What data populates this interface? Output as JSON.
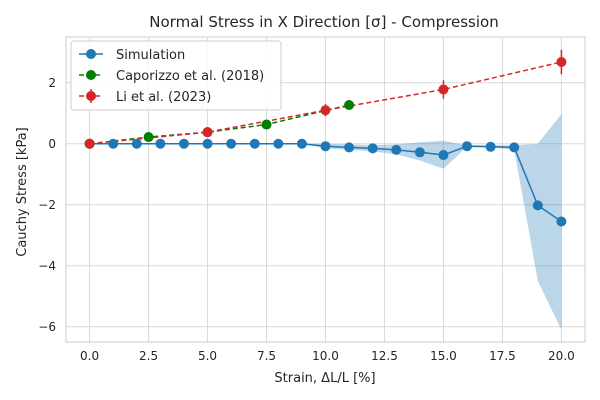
{
  "chart_data": {
    "type": "line",
    "title": "Normal Stress in X Direction [σ] - Compression",
    "xlabel": "Strain, ΔL/L [%]",
    "ylabel": "Cauchy Stress [kPa]",
    "xlim": [
      -1.0,
      21.0
    ],
    "ylim": [
      -6.5,
      3.5
    ],
    "xticks": [
      0.0,
      2.5,
      5.0,
      7.5,
      10.0,
      12.5,
      15.0,
      17.5,
      20.0
    ],
    "xtick_labels": [
      "0.0",
      "2.5",
      "5.0",
      "7.5",
      "10.0",
      "12.5",
      "15.0",
      "17.5",
      "20.0"
    ],
    "yticks": [
      -6,
      -4,
      -2,
      0,
      2
    ],
    "ytick_labels": [
      "−6",
      "−4",
      "−2",
      "0",
      "2"
    ],
    "grid": true,
    "legend_position": "top-left",
    "series": [
      {
        "name": "Simulation",
        "color": "#1f77b4",
        "linestyle": "solid",
        "marker": "circle",
        "x": [
          0,
          1,
          2,
          3,
          4,
          5,
          6,
          7,
          8,
          9,
          10,
          11,
          12,
          13,
          14,
          15,
          16,
          17,
          18,
          19,
          20
        ],
        "y": [
          0.0,
          0.0,
          0.0,
          0.0,
          0.0,
          0.0,
          0.0,
          0.0,
          0.0,
          0.0,
          -0.08,
          -0.12,
          -0.15,
          -0.2,
          -0.28,
          -0.37,
          -0.08,
          -0.1,
          -0.12,
          -2.02,
          -2.55
        ],
        "band_lower": [
          0.0,
          0.0,
          0.0,
          0.0,
          0.0,
          0.0,
          0.0,
          0.0,
          0.0,
          0.0,
          -0.15,
          -0.2,
          -0.25,
          -0.35,
          -0.55,
          -0.82,
          -0.1,
          -0.12,
          -0.2,
          -4.5,
          -6.1
        ],
        "band_upper": [
          0.0,
          0.0,
          0.0,
          0.0,
          0.0,
          0.0,
          0.0,
          0.0,
          0.0,
          0.0,
          0.0,
          -0.02,
          -0.05,
          -0.02,
          0.05,
          0.1,
          -0.05,
          -0.05,
          -0.05,
          0.0,
          0.97
        ]
      },
      {
        "name": "Caporizzo et al. (2018)",
        "color": "#008000",
        "linestyle": "dashed",
        "marker": "circle",
        "x": [
          0.0,
          2.5,
          5.0,
          7.5,
          11.0
        ],
        "y": [
          0.0,
          0.22,
          0.38,
          0.63,
          1.27
        ]
      },
      {
        "name": "Li et al. (2023)",
        "color": "#d62728",
        "linestyle": "dashed",
        "marker": "circle",
        "x": [
          0.0,
          5.0,
          10.0,
          15.0,
          20.0
        ],
        "y": [
          0.0,
          0.38,
          1.1,
          1.78,
          2.68
        ],
        "yerr": [
          0.0,
          0.05,
          0.2,
          0.3,
          0.4
        ]
      }
    ]
  }
}
